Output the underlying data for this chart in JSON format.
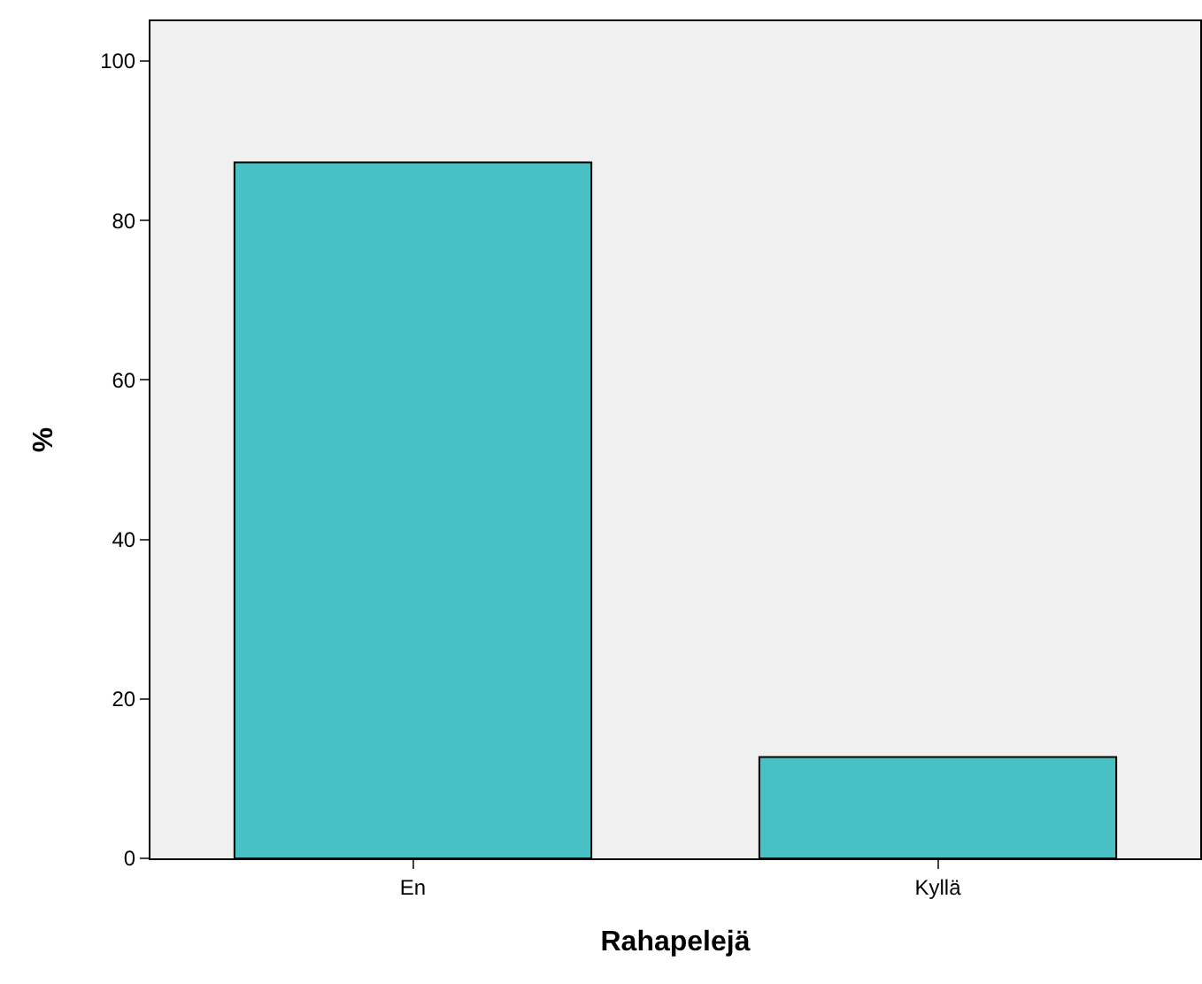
{
  "chart_data": {
    "type": "bar",
    "xlabel": "Rahapelejä",
    "ylabel": "%",
    "categories": [
      "En",
      "Kyllä"
    ],
    "values": [
      87.3,
      12.7
    ],
    "color": "#48c1c4",
    "ylim": [
      0,
      105
    ],
    "yticks": [
      0,
      20,
      40,
      60,
      80,
      100
    ],
    "grid": false,
    "legend": false
  }
}
